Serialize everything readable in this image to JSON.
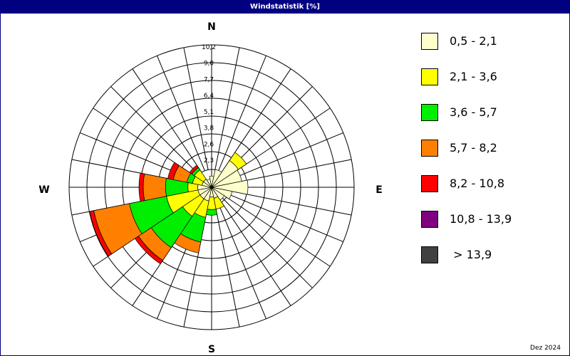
{
  "window": {
    "title": "Windstatistik [%]"
  },
  "footer": {
    "date": "Dez 2024"
  },
  "chart_data": {
    "type": "wind-rose",
    "title": "Windstatistik [%]",
    "directions": [
      "N",
      "NNE",
      "NE",
      "ENE",
      "E",
      "ESE",
      "SE",
      "SSE",
      "S",
      "SSW",
      "SW",
      "WSW",
      "W",
      "WNW",
      "NW",
      "NNW"
    ],
    "compass_labels": {
      "north": "N",
      "east": "E",
      "south": "S",
      "west": "W"
    },
    "radial_ticks": [
      "2,3",
      "2,6",
      "3,8",
      "5,1",
      "6,4",
      "7,7",
      "9,0",
      "10,2"
    ],
    "radial_max": 10.2,
    "speed_classes": [
      {
        "name": "0,5 - 2,1",
        "color": "#FFFFCC"
      },
      {
        "name": "2,1 - 3,6",
        "color": "#FFFF00"
      },
      {
        "name": "3,6 - 5,7",
        "color": "#00EE00"
      },
      {
        "name": "5,7 - 8,2",
        "color": "#FF8000"
      },
      {
        "name": "8,2 - 10,8",
        "color": "#FF0000"
      },
      {
        "name": "10,8 - 13,9",
        "color": "#800080"
      },
      {
        "name": " > 13,9",
        "color": "#404040"
      }
    ],
    "cumulative": [
      [
        0.8,
        0.8,
        0.8,
        0.8,
        0.8,
        0.8,
        0.8
      ],
      [
        1.3,
        1.3,
        1.3,
        1.3,
        1.3,
        1.3,
        1.3
      ],
      [
        2.3,
        3.0,
        3.0,
        3.0,
        3.0,
        3.0,
        3.0
      ],
      [
        2.2,
        2.2,
        2.2,
        2.2,
        2.2,
        2.2,
        2.2
      ],
      [
        2.6,
        2.6,
        2.6,
        2.6,
        2.6,
        2.6,
        2.6
      ],
      [
        1.5,
        1.5,
        1.5,
        1.5,
        1.5,
        1.5,
        1.5
      ],
      [
        1.1,
        1.1,
        1.1,
        1.1,
        1.1,
        1.1,
        1.1
      ],
      [
        0.8,
        1.6,
        1.6,
        1.6,
        1.6,
        1.6,
        1.6
      ],
      [
        0.7,
        1.6,
        2.0,
        2.0,
        2.0,
        2.0,
        2.0
      ],
      [
        1.0,
        2.2,
        4.0,
        4.8,
        4.8,
        4.8,
        4.8
      ],
      [
        1.0,
        2.5,
        5.2,
        6.3,
        6.6,
        6.6,
        6.6
      ],
      [
        1.0,
        3.3,
        6.0,
        8.6,
        8.9,
        8.9,
        8.9
      ],
      [
        1.0,
        1.7,
        3.3,
        4.9,
        5.2,
        5.2,
        5.2
      ],
      [
        0.7,
        1.4,
        1.8,
        2.8,
        3.2,
        3.2,
        3.2
      ],
      [
        0.7,
        1.5,
        1.7,
        1.7,
        1.9,
        1.9,
        1.9
      ],
      [
        0.6,
        0.6,
        0.6,
        0.6,
        0.6,
        0.6,
        0.6
      ]
    ],
    "grid": true,
    "legend_position": "right"
  }
}
